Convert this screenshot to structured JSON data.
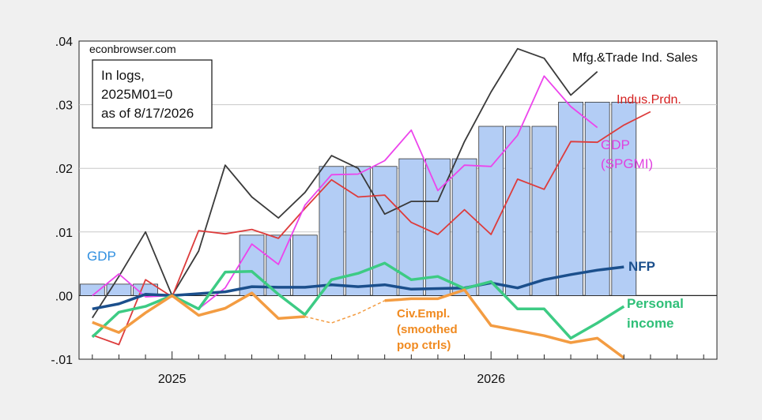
{
  "chart_data": {
    "type": "bar",
    "watermark": "econbrowser.com",
    "note_box": [
      "In logs,",
      "2025M01=0",
      "as of 8/17/2026"
    ],
    "ylim": [
      -0.01,
      0.04
    ],
    "y_ticks": [
      {
        "value": 0.04,
        "label": ".04"
      },
      {
        "value": 0.03,
        "label": ".03"
      },
      {
        "value": 0.02,
        "label": ".02"
      },
      {
        "value": 0.01,
        "label": ".01"
      },
      {
        "value": 0.0,
        "label": ".00"
      },
      {
        "value": -0.01,
        "label": "-.01"
      }
    ],
    "x_labels": [
      {
        "month_index": 0,
        "label": "2025"
      },
      {
        "month_index": 12,
        "label": "2026"
      }
    ],
    "x_range_months": [
      -3.5,
      20.5
    ],
    "gdp_bars": {
      "label": "GDP",
      "color": "#b3cdf5",
      "edge": "#333333",
      "values": [
        {
          "month": "2024M10",
          "index": -3,
          "value": 0.0018
        },
        {
          "month": "2024M11",
          "index": -2,
          "value": 0.0018
        },
        {
          "month": "2024M12",
          "index": -1,
          "value": 0.0018
        },
        {
          "month": "2025M01",
          "index": 0,
          "value": 0.0
        },
        {
          "month": "2025M02",
          "index": 1,
          "value": 0.0
        },
        {
          "month": "2025M03",
          "index": 2,
          "value": 0.0
        },
        {
          "month": "2025M04",
          "index": 3,
          "value": 0.0095
        },
        {
          "month": "2025M05",
          "index": 4,
          "value": 0.0095
        },
        {
          "month": "2025M06",
          "index": 5,
          "value": 0.0095
        },
        {
          "month": "2025M07",
          "index": 6,
          "value": 0.0203
        },
        {
          "month": "2025M08",
          "index": 7,
          "value": 0.0203
        },
        {
          "month": "2025M09",
          "index": 8,
          "value": 0.0203
        },
        {
          "month": "2025M10",
          "index": 9,
          "value": 0.0215
        },
        {
          "month": "2025M11",
          "index": 10,
          "value": 0.0215
        },
        {
          "month": "2025M12",
          "index": 11,
          "value": 0.0215
        },
        {
          "month": "2026M01",
          "index": 12,
          "value": 0.0266
        },
        {
          "month": "2026M02",
          "index": 13,
          "value": 0.0266
        },
        {
          "month": "2026M03",
          "index": 14,
          "value": 0.0266
        },
        {
          "month": "2026M04",
          "index": 15,
          "value": 0.0304
        },
        {
          "month": "2026M05",
          "index": 16,
          "value": 0.0304
        },
        {
          "month": "2026M06",
          "index": 17,
          "value": 0.0304
        }
      ]
    },
    "series": [
      {
        "name": "Mfg.&Trade Ind. Sales",
        "color": "#3a3a3a",
        "width": 1.8,
        "start_index": -3,
        "values": [
          -0.0035,
          0.003,
          0.01,
          0.0,
          0.007,
          0.0205,
          0.0155,
          0.0122,
          0.0162,
          0.022,
          0.02,
          0.0128,
          0.0148,
          0.0148,
          0.0242,
          0.032,
          0.0388,
          0.0373,
          0.0315,
          0.0352
        ]
      },
      {
        "name": "Indus.Prdn.",
        "color": "#dd3c3c",
        "width": 1.8,
        "start_index": -3,
        "values": [
          -0.0062,
          -0.0077,
          0.0025,
          -0.0002,
          0.0102,
          0.0097,
          0.0104,
          0.009,
          0.0137,
          0.0182,
          0.0155,
          0.0158,
          0.0115,
          0.0096,
          0.0135,
          0.0096,
          0.0183,
          0.0167,
          0.0242,
          0.0241,
          0.0268,
          0.0289
        ]
      },
      {
        "name": "GDP\n(SPGMI)",
        "color": "#ec44ec",
        "width": 1.8,
        "start_index": -3,
        "values": [
          0.0,
          0.0034,
          -0.0002,
          0.0,
          -0.0021,
          0.0012,
          0.0081,
          0.0049,
          0.0142,
          0.019,
          0.0191,
          0.0212,
          0.026,
          0.0165,
          0.0205,
          0.0203,
          0.0252,
          0.0345,
          0.0297,
          0.0264
        ]
      },
      {
        "name": "NFP",
        "color": "#1b4f8c",
        "width": 3.5,
        "start_index": -3,
        "values": [
          -0.0021,
          -0.0013,
          0.0002,
          0.0,
          0.0003,
          0.0006,
          0.0014,
          0.0013,
          0.0013,
          0.0017,
          0.0014,
          0.0017,
          0.001,
          0.0011,
          0.0012,
          0.002,
          0.0012,
          0.0025,
          0.0033,
          0.004,
          0.0045
        ]
      },
      {
        "name": "Personal\nincome",
        "color": "#3dcb84",
        "width": 3.5,
        "start_index": -3,
        "values": [
          -0.0065,
          -0.0026,
          -0.0017,
          0.0,
          -0.0021,
          0.0037,
          0.0038,
          0.0002,
          -0.003,
          0.0025,
          0.0035,
          0.0051,
          0.0025,
          0.003,
          0.0011,
          0.0022,
          -0.0021,
          -0.0021,
          -0.0067,
          -0.0043,
          -0.0017
        ]
      },
      {
        "name": "Civ.Empl.\n(smoothed\npop ctrls)",
        "color": "#f39c42",
        "width": 3.5,
        "start_index": -3,
        "values": [
          -0.0042,
          -0.0058,
          -0.0027,
          0.0,
          -0.0031,
          -0.002,
          0.0004,
          -0.0036,
          -0.0033,
          -0.0043,
          -0.0028,
          -0.0008,
          -0.0005,
          -0.0005,
          0.0009,
          -0.0047,
          -0.0055,
          -0.0063,
          -0.0074,
          -0.0067,
          -0.0098
        ],
        "dashed_segment_indices": [
          8,
          11
        ]
      }
    ],
    "labels": {
      "gdp": "GDP",
      "mfg": "Mfg.&Trade Ind. Sales",
      "ip": "Indus.Prdn.",
      "spgmi_line1": "GDP",
      "spgmi_line2": "(SPGMI)",
      "nfp": "NFP",
      "pi_line1": "Personal",
      "pi_line2": "income",
      "civ_line1": "Civ.Empl.",
      "civ_line2": "(smoothed",
      "civ_line3": "pop ctrls)"
    }
  }
}
